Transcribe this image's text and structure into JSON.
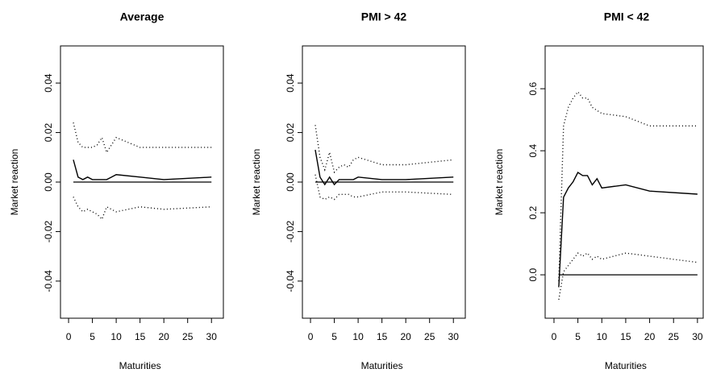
{
  "chart_data": [
    {
      "type": "line",
      "title": "Average",
      "x_label": "Maturities",
      "y_label": "Market reaction",
      "x": [
        1,
        2,
        3,
        4,
        5,
        6,
        7,
        8,
        9,
        10,
        15,
        20,
        30
      ],
      "series": [
        {
          "color": "#000000",
          "style": "solid",
          "values": [
            0.009,
            0.002,
            0.001,
            0.002,
            0.001,
            0.001,
            0.001,
            0.001,
            0.002,
            0.003,
            0.002,
            0.001,
            0.002
          ]
        },
        {
          "color": "#000000",
          "style": "dotted",
          "values": [
            0.024,
            0.016,
            0.014,
            0.014,
            0.014,
            0.015,
            0.018,
            0.012,
            0.015,
            0.018,
            0.014,
            0.014,
            0.014
          ]
        },
        {
          "color": "#000000",
          "style": "dotted",
          "values": [
            -0.006,
            -0.01,
            -0.012,
            -0.011,
            -0.012,
            -0.013,
            -0.015,
            -0.01,
            -0.011,
            -0.012,
            -0.01,
            -0.011,
            -0.01
          ]
        }
      ],
      "hline": 0,
      "xlim": [
        -1.7,
        32.5
      ],
      "xticks": [
        0,
        5,
        10,
        15,
        20,
        25,
        30
      ],
      "ylim": [
        -0.055,
        0.055
      ],
      "yticks": [
        -0.04,
        -0.02,
        {
          "value": 0,
          "label": "0.00"
        },
        0.02,
        0.04
      ]
    },
    {
      "type": "line",
      "title": "PMI > 42",
      "x_label": "Maturities",
      "y_label": "Market reaction",
      "x": [
        1,
        2,
        3,
        4,
        5,
        6,
        7,
        8,
        9,
        10,
        15,
        20,
        30
      ],
      "series": [
        {
          "color": "#000000",
          "style": "solid",
          "values": [
            0.013,
            0.002,
            -0.001,
            0.002,
            -0.001,
            0.001,
            0.001,
            0.001,
            0.001,
            0.002,
            0.001,
            0.001,
            0.002
          ]
        },
        {
          "color": "#000000",
          "style": "dotted",
          "values": [
            0.023,
            0.01,
            0.005,
            0.012,
            0.004,
            0.006,
            0.007,
            0.006,
            0.009,
            0.01,
            0.007,
            0.007,
            0.009
          ]
        },
        {
          "color": "#000000",
          "style": "dotted",
          "values": [
            0.003,
            -0.006,
            -0.007,
            -0.006,
            -0.007,
            -0.005,
            -0.005,
            -0.005,
            -0.006,
            -0.006,
            -0.004,
            -0.004,
            -0.005
          ]
        }
      ],
      "hline": 0,
      "xlim": [
        -1.7,
        32.5
      ],
      "xticks": [
        0,
        5,
        10,
        15,
        20,
        25,
        30
      ],
      "ylim": [
        -0.055,
        0.055
      ],
      "yticks": [
        -0.04,
        -0.02,
        {
          "value": 0,
          "label": "0.00"
        },
        0.02,
        0.04
      ]
    },
    {
      "type": "line",
      "title": "PMI < 42",
      "x_label": "Maturities",
      "y_label": "Market reaction",
      "x": [
        1,
        2,
        3,
        4,
        5,
        6,
        7,
        8,
        9,
        10,
        15,
        20,
        30
      ],
      "series": [
        {
          "color": "#000000",
          "style": "solid",
          "values": [
            -0.04,
            0.25,
            0.28,
            0.3,
            0.33,
            0.32,
            0.32,
            0.29,
            0.31,
            0.28,
            0.29,
            0.27,
            0.26
          ]
        },
        {
          "color": "#000000",
          "style": "dotted",
          "values": [
            -0.02,
            0.48,
            0.54,
            0.57,
            0.59,
            0.57,
            0.57,
            0.54,
            0.53,
            0.52,
            0.51,
            0.48,
            0.48
          ]
        },
        {
          "color": "#000000",
          "style": "dotted",
          "values": [
            -0.08,
            0.01,
            0.03,
            0.05,
            0.07,
            0.06,
            0.07,
            0.05,
            0.06,
            0.05,
            0.07,
            0.06,
            0.04
          ]
        }
      ],
      "hline": 0,
      "xlim": [
        -1.85,
        31.2
      ],
      "xticks": [
        0,
        5,
        10,
        15,
        20,
        25,
        30
      ],
      "ylim": [
        -0.14,
        0.738
      ],
      "yticks": [
        {
          "value": 0,
          "label": "0.0"
        },
        0.2,
        0.4,
        0.6
      ]
    }
  ]
}
